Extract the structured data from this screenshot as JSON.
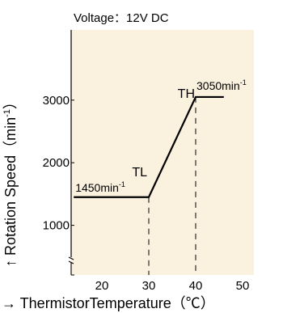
{
  "chart_data": {
    "type": "line",
    "title": "Voltage：12V DC",
    "xlabel": "→ ThermistorTemperature（℃）",
    "ylabel": "↑  Rotation Speed（min",
    "ylabel_sup": "-1",
    "ylabel_end": "）",
    "x_ticks": [
      20,
      30,
      40,
      50
    ],
    "y_ticks": [
      1000,
      2000,
      3000
    ],
    "xlim": [
      14,
      50
    ],
    "ylim": [
      0,
      3800
    ],
    "grid": false,
    "background": "#FBF1DF",
    "line_color": "#000000",
    "series": [
      {
        "x": [
          14,
          30,
          40,
          46
        ],
        "y": [
          1450,
          1450,
          3050,
          3050
        ]
      }
    ],
    "markers": [
      {
        "key": "tl",
        "label": "TL",
        "x": 30
      },
      {
        "key": "th",
        "label": "TH",
        "x": 40
      }
    ],
    "annotations": [
      {
        "key": "low",
        "text": "1450min",
        "sup": "-1",
        "x": 14,
        "y": 1450
      },
      {
        "key": "high",
        "text": "3050min",
        "sup": "-1",
        "x": 40,
        "y": 3050
      }
    ]
  }
}
